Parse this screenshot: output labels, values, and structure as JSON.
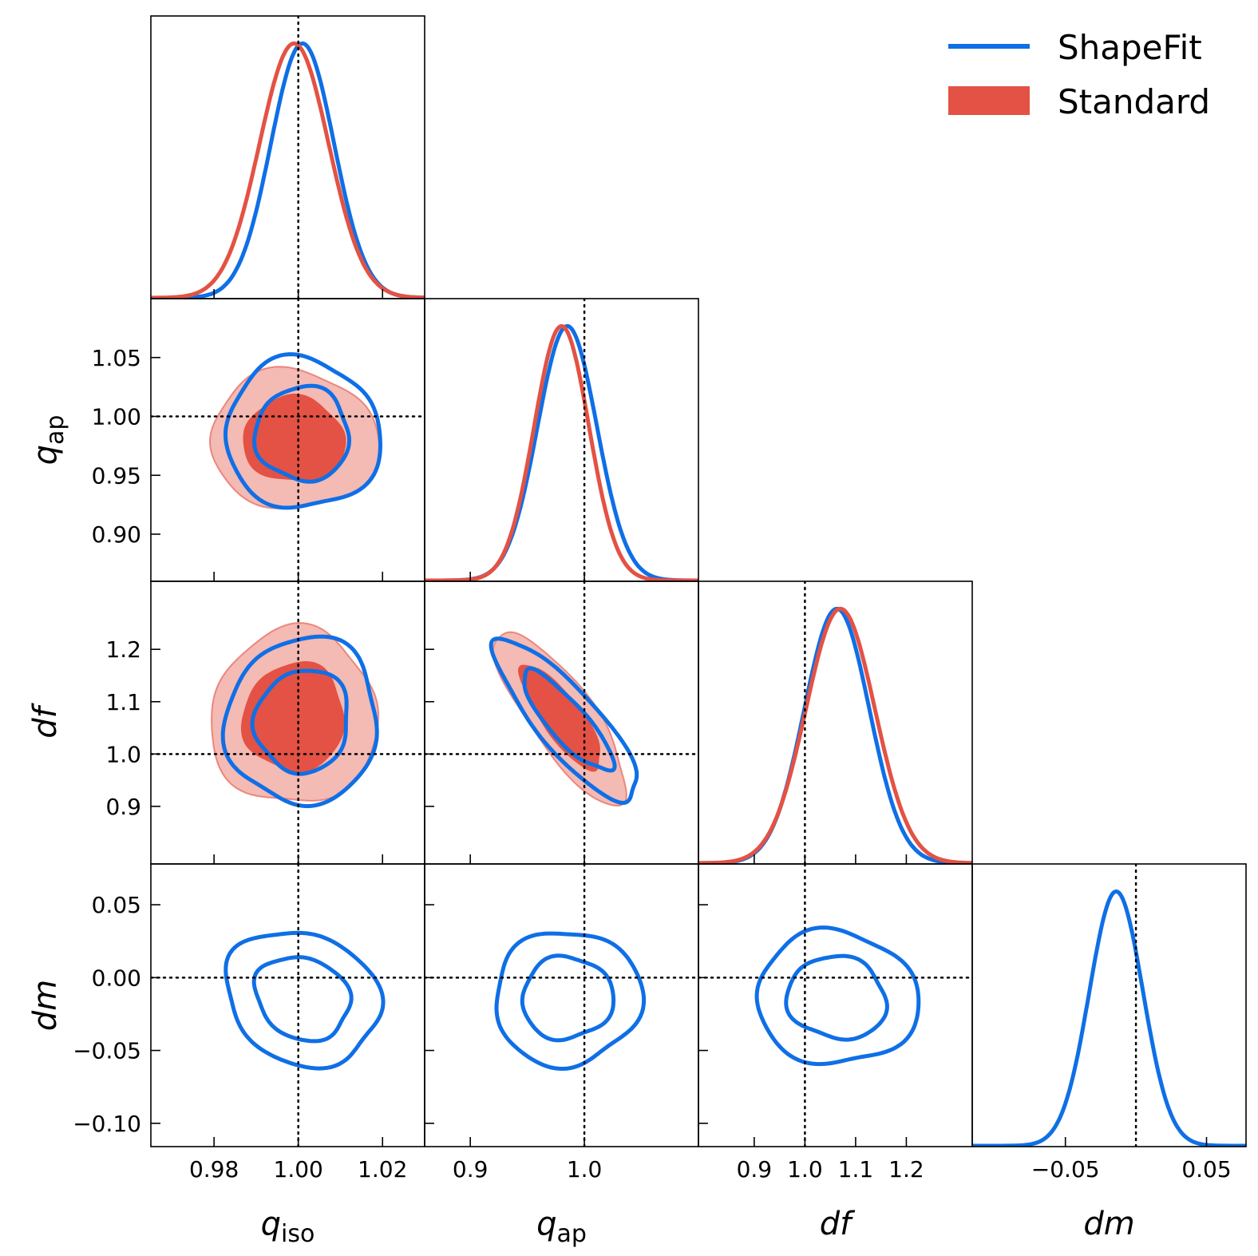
{
  "chart_data": {
    "type": "corner",
    "parameters": [
      {
        "key": "qiso",
        "symbol": "q",
        "subscript": "iso",
        "range": [
          0.965,
          1.03
        ],
        "ticks": [
          0.98,
          1.0,
          1.02
        ],
        "tick_labels": [
          "0.98",
          "1.00",
          "1.02"
        ],
        "truth": 1.0
      },
      {
        "key": "qap",
        "symbol": "q",
        "subscript": "ap",
        "range": [
          0.86,
          1.1
        ],
        "ticks": [
          0.9,
          1.0
        ],
        "tick_labels": [
          "0.9",
          "1.0"
        ],
        "y_ticks": [
          0.9,
          0.95,
          1.0,
          1.05
        ],
        "y_tick_labels": [
          "0.90",
          "0.95",
          "1.00",
          "1.05"
        ],
        "truth": 1.0
      },
      {
        "key": "df",
        "symbol": "df",
        "subscript": "",
        "range": [
          0.79,
          1.33
        ],
        "ticks": [
          0.9,
          1.0,
          1.1,
          1.2
        ],
        "tick_labels": [
          "0.9",
          "1.0",
          "1.1",
          "1.2"
        ],
        "truth": 1.0
      },
      {
        "key": "dm",
        "symbol": "dm",
        "subscript": "",
        "range": [
          -0.116,
          0.078
        ],
        "ticks": [
          -0.05,
          0.05
        ],
        "tick_labels": [
          "−0.05",
          "0.05"
        ],
        "y_ticks": [
          -0.1,
          -0.05,
          0.0,
          0.05
        ],
        "y_tick_labels": [
          "−0.10",
          "−0.05",
          "0.00",
          "0.05"
        ],
        "truth": 0.0
      }
    ],
    "series": [
      {
        "name": "ShapeFit",
        "style": "line",
        "color": "#0f6fe6",
        "marginals": [
          {
            "mean": 1.001,
            "sigma": 0.0075
          },
          {
            "mean": 0.985,
            "sigma": 0.026
          },
          {
            "mean": 1.063,
            "sigma": 0.064
          },
          {
            "mean": -0.014,
            "sigma": 0.019
          }
        ],
        "contours": [
          {
            "pair": [
              "qiso",
              "qap"
            ],
            "rho": 0.0
          },
          {
            "pair": [
              "qiso",
              "df"
            ],
            "rho": 0.05
          },
          {
            "pair": [
              "qap",
              "df"
            ],
            "rho": -0.85
          },
          {
            "pair": [
              "qiso",
              "dm"
            ],
            "rho": -0.2
          },
          {
            "pair": [
              "qap",
              "dm"
            ],
            "rho": 0.0
          },
          {
            "pair": [
              "df",
              "dm"
            ],
            "rho": -0.05
          }
        ]
      },
      {
        "name": "Standard",
        "style": "filled",
        "color": "#e35244",
        "marginals": [
          {
            "mean": 0.999,
            "sigma": 0.0082
          },
          {
            "mean": 0.98,
            "sigma": 0.024
          },
          {
            "mean": 1.07,
            "sigma": 0.068
          }
        ],
        "contours": [
          {
            "pair": [
              "qiso",
              "qap"
            ],
            "rho": 0.0
          },
          {
            "pair": [
              "qiso",
              "df"
            ],
            "rho": 0.05
          },
          {
            "pair": [
              "qap",
              "df"
            ],
            "rho": -0.82
          }
        ]
      }
    ],
    "legend_position": "top-right",
    "truth_line_style": "dotted",
    "contour_levels": [
      "68%",
      "95%"
    ]
  }
}
